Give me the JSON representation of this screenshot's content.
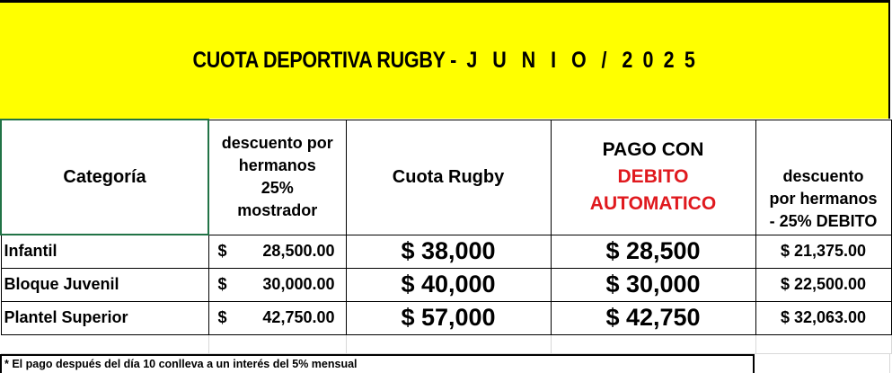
{
  "title": "CUOTA DEPORTIVA RUGBY -  J   U   N   I   O   /   2  0  2  5",
  "headers": {
    "categoria": "Categoría",
    "desc_mostrador": [
      "descuento por",
      "hermanos",
      "25%",
      "mostrador"
    ],
    "cuota": "Cuota Rugby",
    "pago_con": "PAGO CON",
    "debito": "DEBITO",
    "automatico": "AUTOMATICO",
    "desc_debito": [
      "descuento",
      "por hermanos",
      "- 25% DEBITO"
    ]
  },
  "colors": {
    "banner": "#ffff00",
    "accent_red": "#e0191e",
    "selection": "#217346"
  },
  "rows": [
    {
      "categoria": "Infantil",
      "currency": "$",
      "desc_mostrador": "28,500.00",
      "cuota": "$ 38,000",
      "debito": "$ 28,500",
      "desc_debito": "$ 21,375.00"
    },
    {
      "categoria": "Bloque Juvenil",
      "currency": "$",
      "desc_mostrador": "30,000.00",
      "cuota": "$ 40,000",
      "debito": "$ 30,000",
      "desc_debito": "$ 22,500.00"
    },
    {
      "categoria": "Plantel Superior",
      "currency": "$",
      "desc_mostrador": "42,750.00",
      "cuota": "$ 57,000",
      "debito": "$ 42,750",
      "desc_debito": "$ 32,063.00"
    }
  ],
  "footnote": "* El pago después del día 10 conlleva a un interés del 5% mensual"
}
